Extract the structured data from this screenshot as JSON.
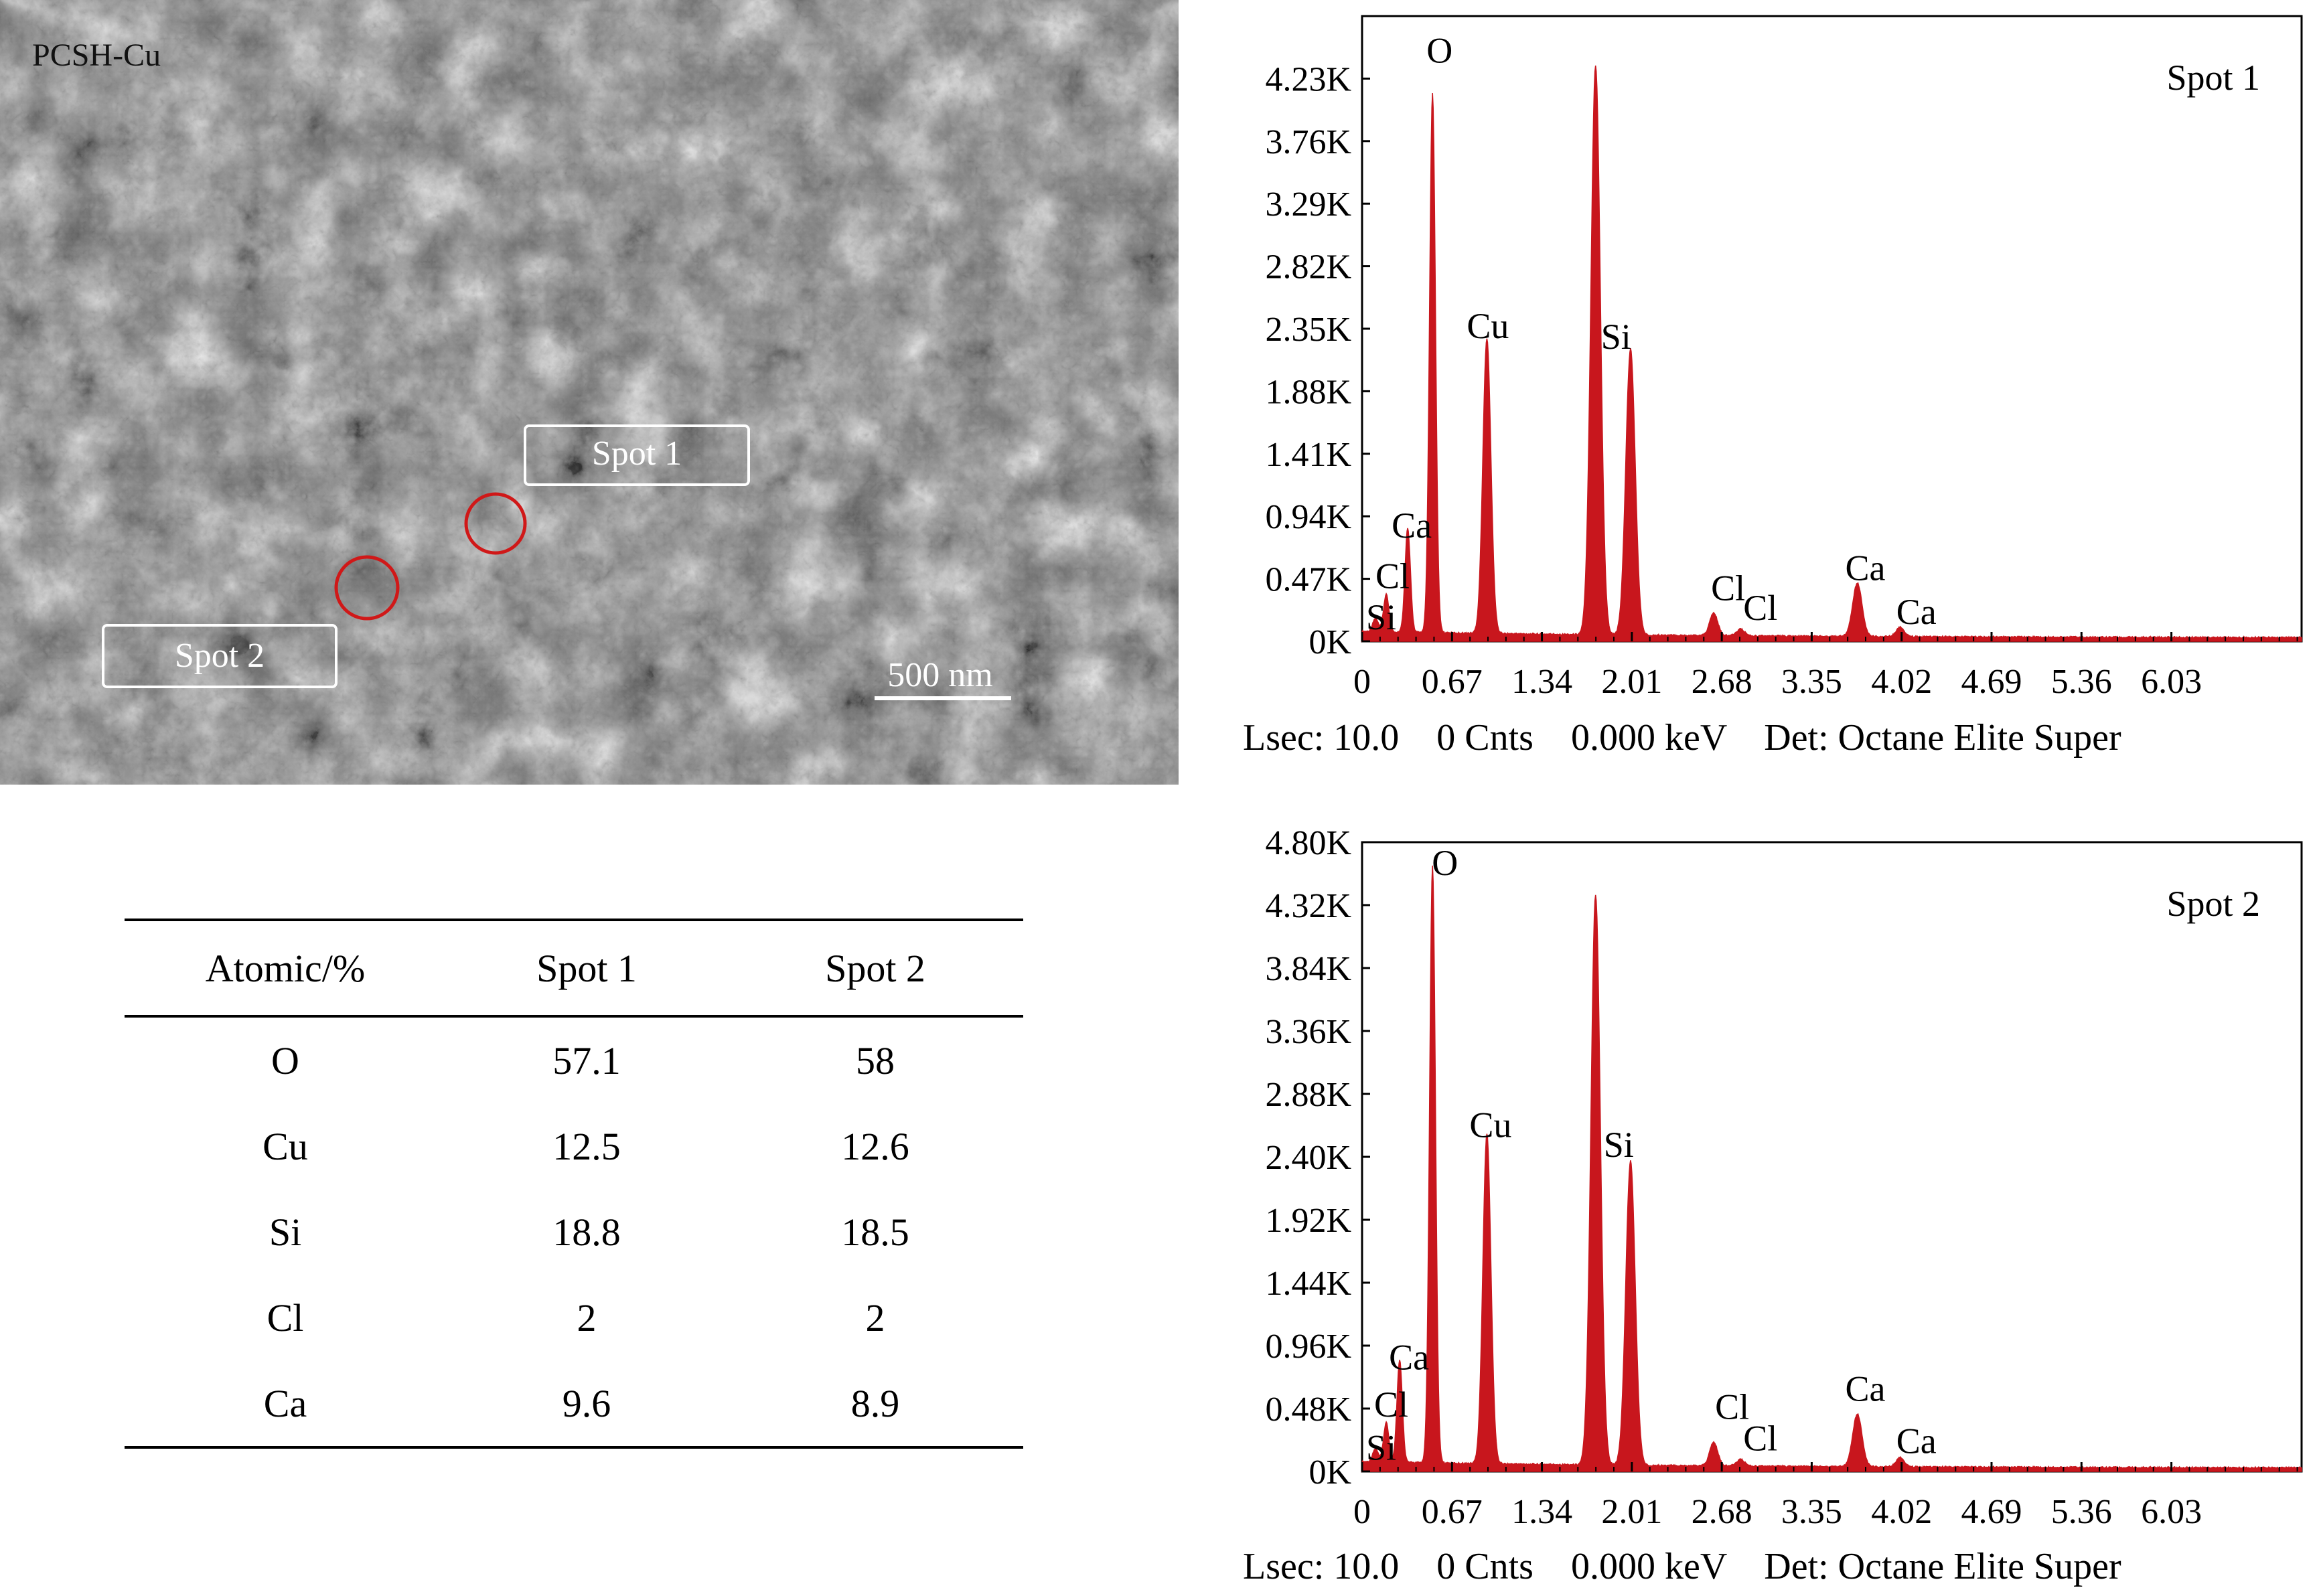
{
  "sem_image": {
    "sample_label": "PCSH-Cu",
    "scale_bar_label": "500 nm",
    "spot_labels": [
      "Spot 1",
      "Spot 2"
    ],
    "marker_color": "#d01818"
  },
  "table": {
    "headers": [
      "Atomic/%",
      "Spot 1",
      "Spot 2"
    ],
    "rows": [
      [
        "O",
        "57.1",
        "58"
      ],
      [
        "Cu",
        "12.5",
        "12.6"
      ],
      [
        "Si",
        "18.8",
        "18.5"
      ],
      [
        "Cl",
        "2",
        "2"
      ],
      [
        "Ca",
        "9.6",
        "8.9"
      ]
    ]
  },
  "chart_data": [
    {
      "type": "area",
      "label": "Spot 1",
      "color": "#c8161d",
      "xlim": [
        0,
        7.0
      ],
      "ylim": [
        0,
        4.7
      ],
      "x_ticks": [
        "0",
        "0.67",
        "1.34",
        "2.01",
        "2.68",
        "3.35",
        "4.02",
        "4.69",
        "5.36",
        "6.03"
      ],
      "x_tick_values": [
        0,
        0.67,
        1.34,
        2.01,
        2.68,
        3.35,
        4.02,
        4.69,
        5.36,
        6.03
      ],
      "y_ticks": [
        "0K",
        "0.47K",
        "0.94K",
        "1.41K",
        "1.88K",
        "2.35K",
        "2.82K",
        "3.29K",
        "3.76K",
        "4.23K"
      ],
      "y_tick_values": [
        0,
        0.47,
        0.94,
        1.41,
        1.88,
        2.35,
        2.82,
        3.29,
        3.76,
        4.23
      ],
      "footer": "Lsec: 10.0    0 Cnts    0.000 keV    Det: Octane Elite Super",
      "peaks": [
        {
          "element": "Si",
          "x": 0.1,
          "y": 0.1,
          "w": 0.02
        },
        {
          "element": "Cl",
          "x": 0.18,
          "y": 0.28,
          "w": 0.02
        },
        {
          "element": "Ca",
          "x": 0.34,
          "y": 0.78,
          "w": 0.02
        },
        {
          "element": "O",
          "x": 0.525,
          "y": 4.05,
          "w": 0.022
        },
        {
          "element": "Cu",
          "x": 0.93,
          "y": 2.22,
          "w": 0.03
        },
        {
          "element": "Si",
          "x": 1.74,
          "y": 4.28,
          "w": 0.035
        },
        {
          "element": "Si",
          "x": 2.0,
          "y": 2.15,
          "w": 0.035
        },
        {
          "element": "Cl",
          "x": 2.62,
          "y": 0.17,
          "w": 0.03
        },
        {
          "element": "Cl",
          "x": 2.82,
          "y": 0.05,
          "w": 0.03
        },
        {
          "element": "Ca",
          "x": 3.69,
          "y": 0.4,
          "w": 0.035
        },
        {
          "element": "Ca",
          "x": 4.01,
          "y": 0.07,
          "w": 0.03
        }
      ],
      "annotations": [
        {
          "text": "O",
          "x": 0.48,
          "y": 4.35
        },
        {
          "text": "Cu",
          "x": 0.78,
          "y": 2.28
        },
        {
          "text": "Si",
          "x": 1.78,
          "y": 2.2
        },
        {
          "text": "Ca",
          "x": 0.22,
          "y": 0.78
        },
        {
          "text": "Cl",
          "x": 0.1,
          "y": 0.4
        },
        {
          "text": "Si",
          "x": 0.03,
          "y": 0.09
        },
        {
          "text": "Cl",
          "x": 2.6,
          "y": 0.31
        },
        {
          "text": "Cl",
          "x": 2.84,
          "y": 0.16
        },
        {
          "text": "Ca",
          "x": 3.6,
          "y": 0.46
        },
        {
          "text": "Ca",
          "x": 3.98,
          "y": 0.13
        }
      ]
    },
    {
      "type": "area",
      "label": "Spot 2",
      "color": "#c8161d",
      "xlim": [
        0,
        7.0
      ],
      "ylim": [
        0,
        4.8
      ],
      "x_ticks": [
        "0",
        "0.67",
        "1.34",
        "2.01",
        "2.68",
        "3.35",
        "4.02",
        "4.69",
        "5.36",
        "6.03"
      ],
      "x_tick_values": [
        0,
        0.67,
        1.34,
        2.01,
        2.68,
        3.35,
        4.02,
        4.69,
        5.36,
        6.03
      ],
      "y_ticks": [
        "0K",
        "0.48K",
        "0.96K",
        "1.44K",
        "1.92K",
        "2.40K",
        "2.88K",
        "3.36K",
        "3.84K",
        "4.32K",
        "4.80K"
      ],
      "y_tick_values": [
        0,
        0.48,
        0.96,
        1.44,
        1.92,
        2.4,
        2.88,
        3.36,
        3.84,
        4.32,
        4.8
      ],
      "footer": "Lsec: 10.0    0 Cnts    0.000 keV    Det: Octane Elite Super",
      "peaks": [
        {
          "element": "Si",
          "x": 0.1,
          "y": 0.1,
          "w": 0.02
        },
        {
          "element": "Cl",
          "x": 0.18,
          "y": 0.3,
          "w": 0.02
        },
        {
          "element": "Ca",
          "x": 0.28,
          "y": 0.78,
          "w": 0.02
        },
        {
          "element": "O",
          "x": 0.525,
          "y": 4.55,
          "w": 0.022
        },
        {
          "element": "Cu",
          "x": 0.93,
          "y": 2.52,
          "w": 0.03
        },
        {
          "element": "Si",
          "x": 1.74,
          "y": 4.35,
          "w": 0.035
        },
        {
          "element": "Si",
          "x": 2.0,
          "y": 2.32,
          "w": 0.035
        },
        {
          "element": "Cl",
          "x": 2.62,
          "y": 0.18,
          "w": 0.03
        },
        {
          "element": "Cl",
          "x": 2.82,
          "y": 0.05,
          "w": 0.03
        },
        {
          "element": "Ca",
          "x": 3.69,
          "y": 0.4,
          "w": 0.035
        },
        {
          "element": "Ca",
          "x": 4.01,
          "y": 0.07,
          "w": 0.03
        }
      ],
      "annotations": [
        {
          "text": "O",
          "x": 0.52,
          "y": 4.55
        },
        {
          "text": "Cu",
          "x": 0.8,
          "y": 2.55
        },
        {
          "text": "Si",
          "x": 1.8,
          "y": 2.4
        },
        {
          "text": "Ca",
          "x": 0.2,
          "y": 0.78
        },
        {
          "text": "Cl",
          "x": 0.09,
          "y": 0.42
        },
        {
          "text": "Si",
          "x": 0.03,
          "y": 0.09
        },
        {
          "text": "Cl",
          "x": 2.63,
          "y": 0.4
        },
        {
          "text": "Cl",
          "x": 2.84,
          "y": 0.16
        },
        {
          "text": "Ca",
          "x": 3.6,
          "y": 0.54
        },
        {
          "text": "Ca",
          "x": 3.98,
          "y": 0.14
        }
      ]
    }
  ]
}
